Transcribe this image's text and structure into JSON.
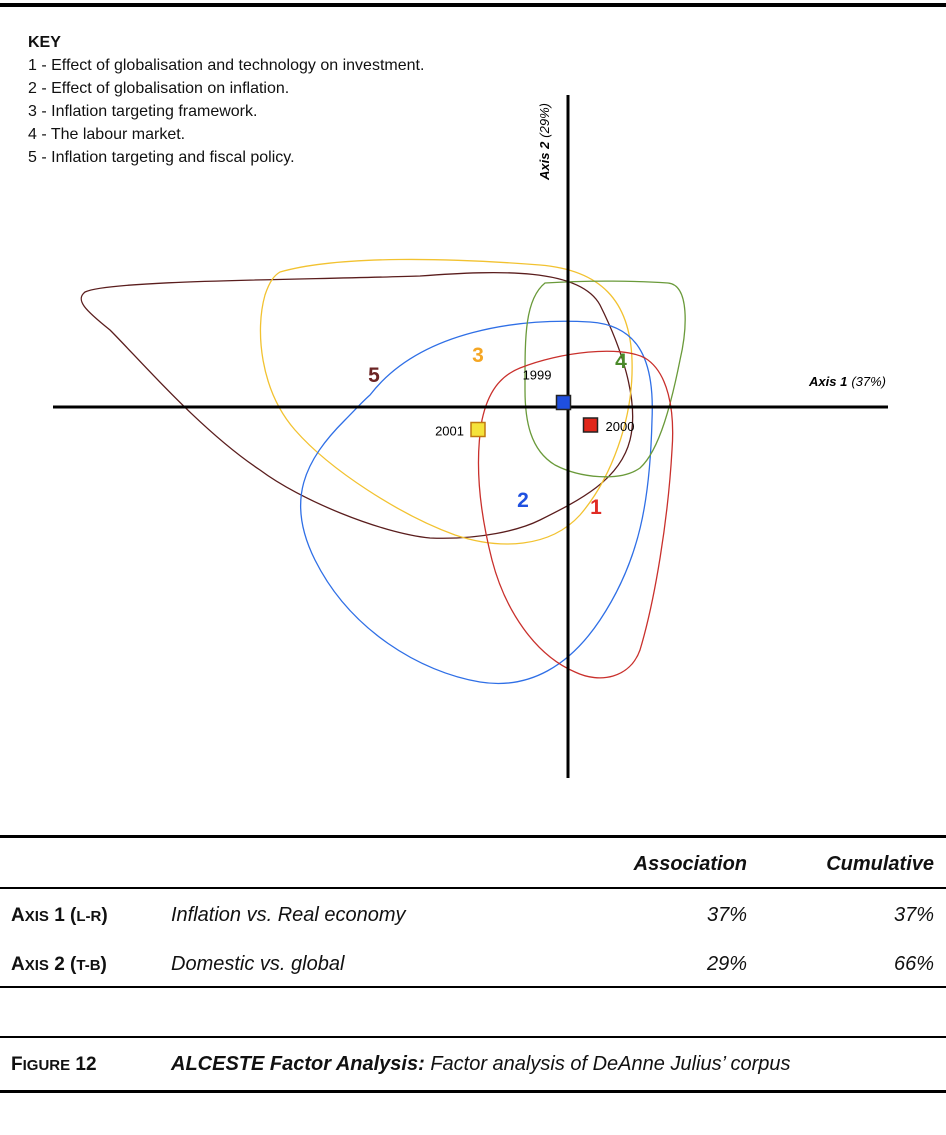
{
  "key": {
    "title": "KEY",
    "items": [
      "1 - Effect of globalisation and technology on investment.",
      "2 - Effect of globalisation on inflation.",
      "3 - Inflation targeting framework.",
      "4 - The labour market.",
      "5 - Inflation targeting and fiscal policy."
    ]
  },
  "chart_data": {
    "type": "scatter",
    "title": "",
    "axes": {
      "x": {
        "label": "Axis 1",
        "pct": "(37%)"
      },
      "y": {
        "label": "Axis 2",
        "pct": "(29%)"
      }
    },
    "points": [
      {
        "label": "1999",
        "x": -0.05,
        "y": 0.05,
        "color": "#1f4fe0"
      },
      {
        "label": "2000",
        "x": 0.25,
        "y": -0.2,
        "color": "#e0261a"
      },
      {
        "label": "2001",
        "x": -1.0,
        "y": -0.25,
        "color": "#f5e33a"
      }
    ],
    "clusters": [
      {
        "id": "1",
        "color": "#e02b24",
        "stroke": "#c9302c"
      },
      {
        "id": "2",
        "color": "#1f50e0",
        "stroke": "#2f6fe6"
      },
      {
        "id": "3",
        "color": "#f5a623",
        "stroke": "#f2c230"
      },
      {
        "id": "4",
        "color": "#4a8a2a",
        "stroke": "#6a9a3a"
      },
      {
        "id": "5",
        "color": "#6b2424",
        "stroke": "#5a1d1d"
      }
    ]
  },
  "table": {
    "headers": {
      "association": "Association",
      "cumulative": "Cumulative"
    },
    "rows": [
      {
        "axis_big": "A",
        "axis_small": "xis",
        "axis_num": " 1 (",
        "dir": "l-r",
        "close": ")",
        "description": "Inflation vs. Real economy",
        "association": "37%",
        "cumulative": "37%"
      },
      {
        "axis_big": "A",
        "axis_small": "xis",
        "axis_num": " 2 (",
        "dir": "t-b",
        "close": ")",
        "description": "Domestic vs. global",
        "association": "29%",
        "cumulative": "66%"
      }
    ]
  },
  "figure": {
    "label_big": "F",
    "label_small": "igure",
    "label_num": " 12",
    "title_bold": "ALCESTE Factor Analysis:",
    "title_rest": " Factor analysis of DeAnne Julius’ corpus"
  }
}
